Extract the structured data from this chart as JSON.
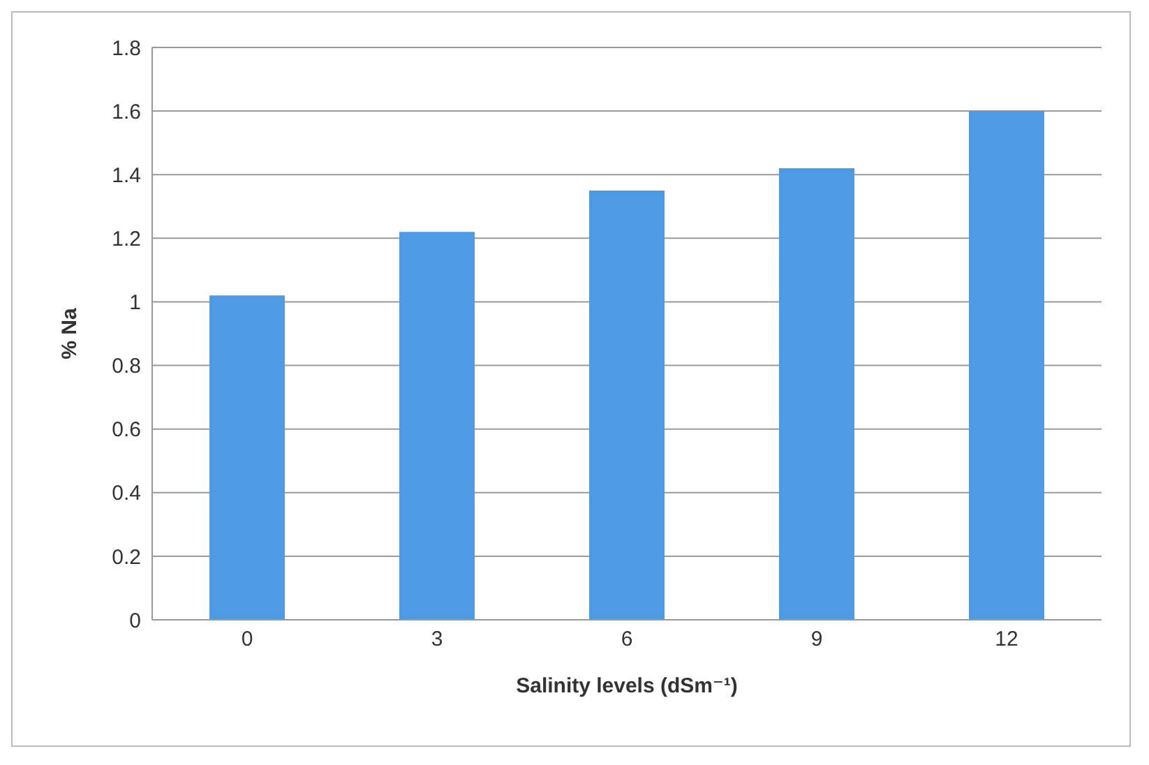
{
  "chart_data": {
    "type": "bar",
    "xlabel": "Salinity levels (dSm⁻¹)",
    "ylabel": "% Na",
    "categories": [
      "0",
      "3",
      "6",
      "9",
      "12"
    ],
    "values": [
      1.02,
      1.22,
      1.35,
      1.42,
      1.6
    ],
    "color": "#4f9be3",
    "ylim": [
      0,
      1.8
    ],
    "yticks": [
      0,
      0.2,
      0.4,
      0.6,
      0.8,
      1,
      1.2,
      1.4,
      1.6,
      1.8
    ],
    "grid": "y"
  }
}
